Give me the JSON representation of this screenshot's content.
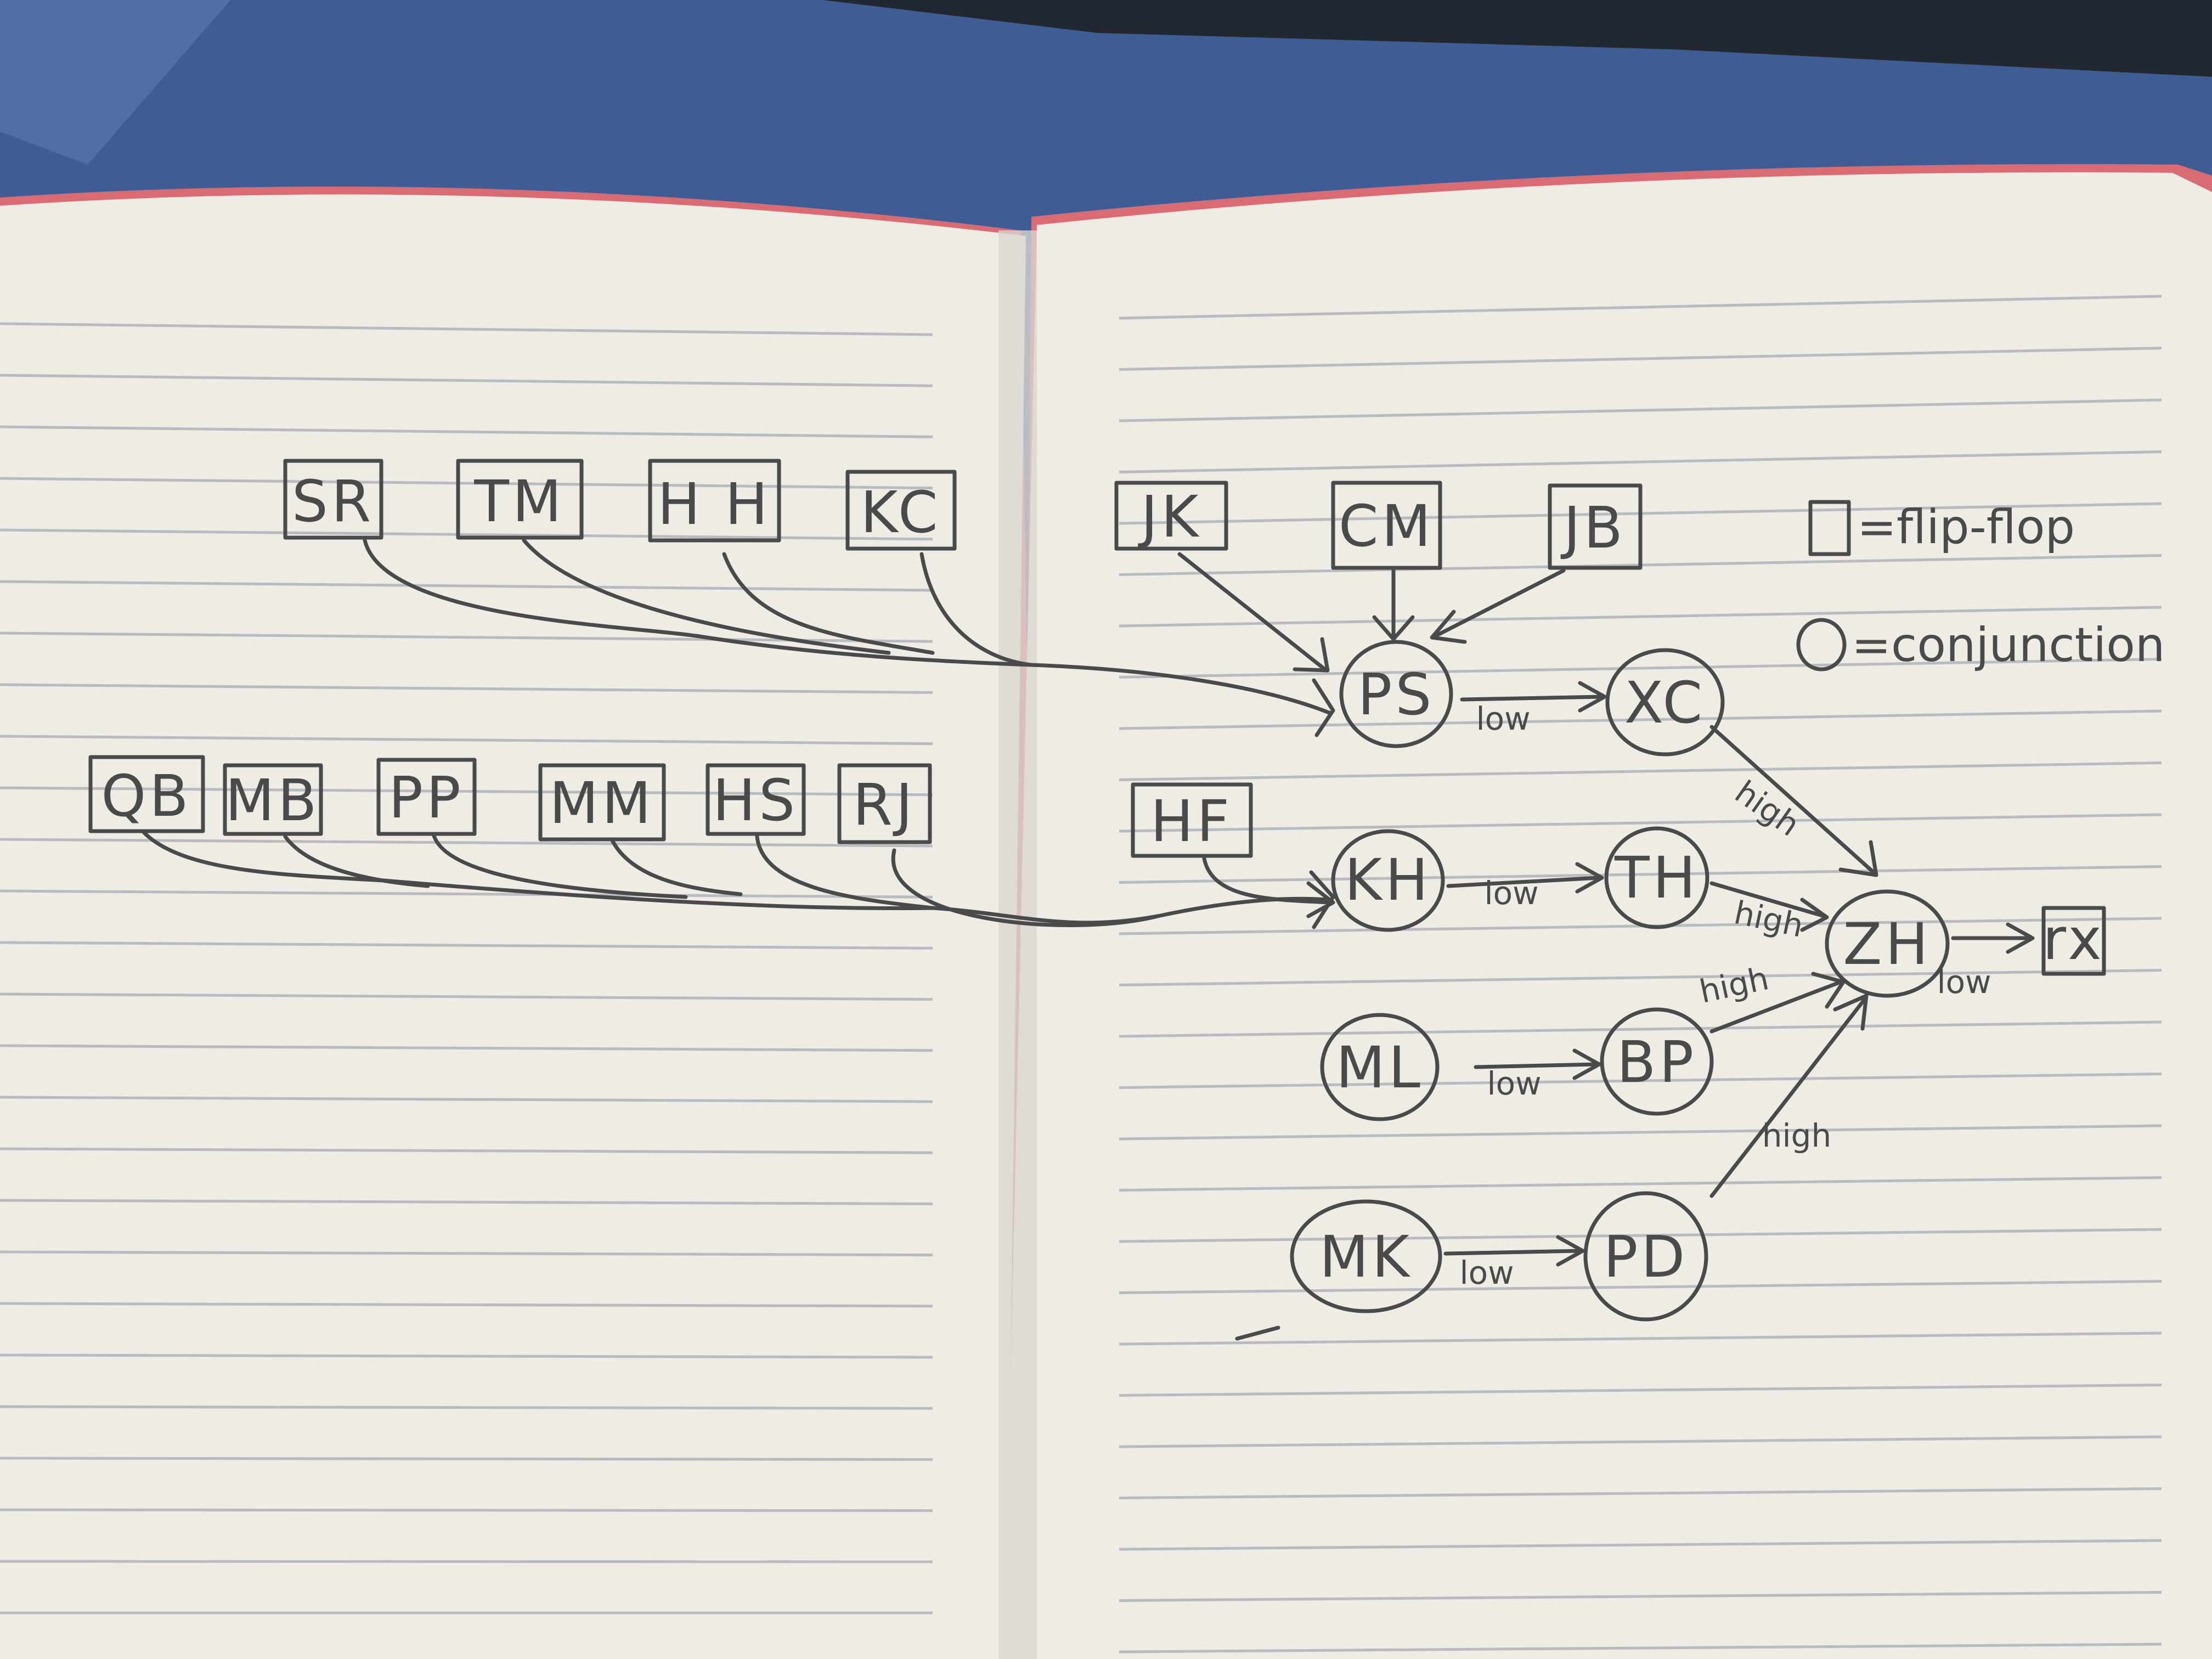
{
  "colors": {
    "desk": "#3f5d94",
    "desk_light": "#5a78ad",
    "paper": "#efece6",
    "paper_shade": "#d9d6cf",
    "rule_line": "#b9bbbf",
    "pencil": "#4a4a4a",
    "notebook_edge": "#d96c72",
    "device": "#222831"
  },
  "legend": {
    "flipflop": "=flip-flop",
    "conjunction": "=conjunction"
  },
  "flipflops": {
    "sr": "SR",
    "tm": "TM",
    "hh": "H H",
    "kc": "KC",
    "qb": "QB",
    "mb": "MB",
    "pp": "PP",
    "mm": "MM",
    "hs": "HS",
    "rj": "RJ",
    "jk": "JK",
    "cm": "CM",
    "jb": "JB",
    "hf": "HF",
    "rx": "rx"
  },
  "conjunctions": {
    "ps": "PS",
    "xc": "XC",
    "kh": "KH",
    "th": "TH",
    "zh": "ZH",
    "ml": "ML",
    "bp": "BP",
    "mk": "MK",
    "pd": "PD"
  },
  "edge_labels": {
    "ps_xc": "low",
    "xc_zh": "high",
    "kh_th": "low",
    "th_zh": "high",
    "bp_zh": "high",
    "ml_bp": "low",
    "pd_zh": "high",
    "mk_pd": "low",
    "zh_rx": "low"
  }
}
